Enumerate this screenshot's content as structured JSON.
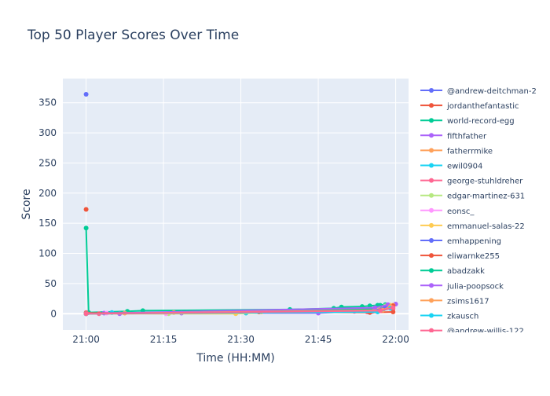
{
  "chart_data": {
    "type": "line",
    "title": "Top 50 Player Scores Over Time",
    "xlabel": "Time (HH:MM)",
    "ylabel": "Score",
    "x_ticks": [
      "21:00",
      "21:15",
      "21:30",
      "21:45",
      "22:00"
    ],
    "x_tick_minutes": [
      0,
      15,
      30,
      45,
      60
    ],
    "y_ticks": [
      0,
      50,
      100,
      150,
      200,
      250,
      300,
      350
    ],
    "xlim_minutes": [
      -4.5,
      62.5
    ],
    "ylim": [
      -27,
      390
    ],
    "grid": true,
    "legend_position": "right",
    "x_unit_note": "x values are minutes after 21:00",
    "series": [
      {
        "name": "@andrew-deitchman-2",
        "color": "#636efa",
        "points": [
          [
            0,
            364
          ]
        ]
      },
      {
        "name": "jordanthefantastic",
        "color": "#EF553B",
        "points": [
          [
            0,
            173
          ]
        ]
      },
      {
        "name": "world-record-egg",
        "color": "#00cc96",
        "points": [
          [
            0,
            142
          ],
          [
            0.5,
            2
          ],
          [
            8,
            4
          ],
          [
            11,
            5
          ],
          [
            39.5,
            7
          ],
          [
            48,
            9
          ],
          [
            49.5,
            11
          ],
          [
            53.5,
            12
          ],
          [
            55,
            13
          ],
          [
            56.5,
            14
          ],
          [
            58,
            15
          ]
        ]
      },
      {
        "name": "fifthfather",
        "color": "#ab63fa",
        "points": [
          [
            0,
            1
          ],
          [
            3.5,
            1
          ],
          [
            6.5,
            0
          ],
          [
            18.5,
            1
          ],
          [
            45,
            1
          ],
          [
            52,
            4
          ],
          [
            55.5,
            5
          ],
          [
            57.5,
            8
          ],
          [
            60,
            16
          ]
        ]
      },
      {
        "name": "fatherrmike",
        "color": "#FFA15A",
        "points": [
          [
            0,
            0
          ],
          [
            7.5,
            1
          ],
          [
            17,
            2
          ],
          [
            34,
            3
          ],
          [
            55.5,
            6
          ],
          [
            57.5,
            10
          ],
          [
            59.5,
            14
          ]
        ]
      },
      {
        "name": "ewil0904",
        "color": "#19d3f3",
        "points": [
          [
            0,
            0
          ],
          [
            5,
            2
          ],
          [
            31,
            1
          ],
          [
            56,
            6
          ],
          [
            58.5,
            11
          ]
        ]
      },
      {
        "name": "george-stuhldreher",
        "color": "#FF6692",
        "points": [
          [
            0,
            2
          ],
          [
            2.5,
            0
          ],
          [
            54.5,
            3
          ],
          [
            57,
            12
          ],
          [
            59.5,
            8
          ]
        ]
      },
      {
        "name": "edgar-martinez-631",
        "color": "#B6E880",
        "points": [
          [
            0,
            1
          ],
          [
            16,
            0
          ],
          [
            56.5,
            9
          ],
          [
            58,
            13
          ]
        ]
      },
      {
        "name": "eonsc_",
        "color": "#FF97FF",
        "points": [
          [
            0,
            0
          ],
          [
            4,
            1
          ],
          [
            15.5,
            0
          ],
          [
            57,
            7
          ],
          [
            58.5,
            12
          ]
        ]
      },
      {
        "name": "emmanuel-salas-22",
        "color": "#FECB52",
        "points": [
          [
            0,
            0
          ],
          [
            29,
            0
          ],
          [
            57.5,
            9
          ],
          [
            59,
            14
          ]
        ]
      },
      {
        "name": "emhappening",
        "color": "#636efa",
        "points": [
          [
            0,
            0
          ],
          [
            55.5,
            4
          ],
          [
            58,
            11
          ]
        ]
      },
      {
        "name": "eliwarnke255",
        "color": "#EF553B",
        "points": [
          [
            0,
            1
          ],
          [
            33.5,
            3
          ],
          [
            55,
            2
          ],
          [
            59.5,
            3
          ],
          [
            59.5,
            13
          ]
        ]
      },
      {
        "name": "abadzakk",
        "color": "#00cc96",
        "points": [
          [
            0,
            0
          ],
          [
            55,
            8
          ],
          [
            57,
            14
          ]
        ]
      },
      {
        "name": "julia-poopsock",
        "color": "#ab63fa",
        "points": [
          [
            0,
            0
          ],
          [
            56,
            10
          ],
          [
            58.5,
            15
          ]
        ]
      },
      {
        "name": "zsims1617",
        "color": "#FFA15A",
        "points": [
          [
            0,
            0
          ],
          [
            57.5,
            6
          ],
          [
            59,
            12
          ]
        ]
      },
      {
        "name": "zkausch",
        "color": "#19d3f3",
        "points": [
          [
            0,
            0
          ],
          [
            56.5,
            3
          ],
          [
            59,
            9
          ]
        ]
      },
      {
        "name": "@andrew-willis-122",
        "color": "#FF6692",
        "points": [
          [
            0,
            0
          ],
          [
            57,
            5
          ],
          [
            59.5,
            10
          ]
        ]
      }
    ]
  }
}
